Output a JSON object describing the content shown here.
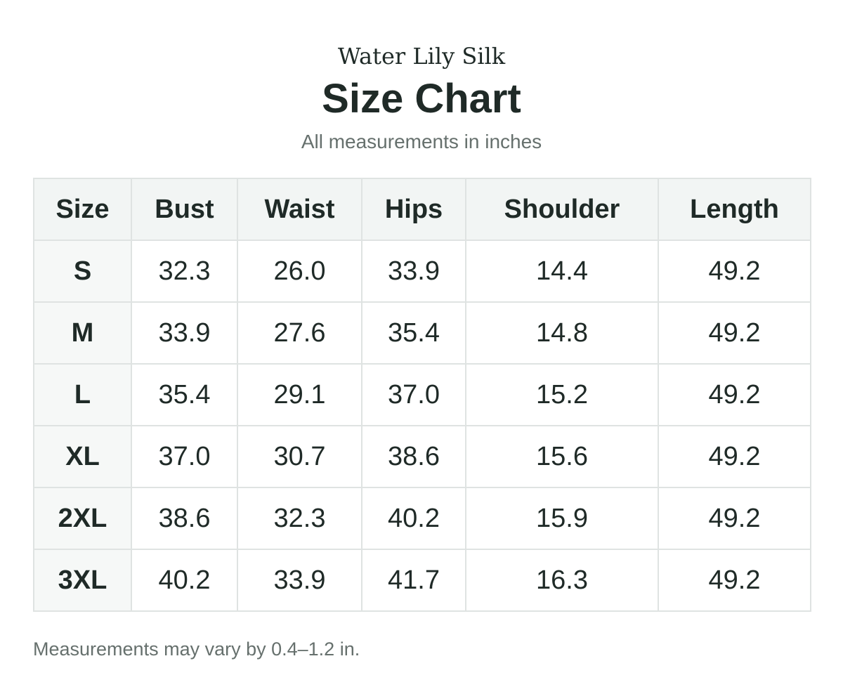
{
  "header": {
    "brand": "Water Lily Silk",
    "title": "Size Chart",
    "subtitle": "All measurements in inches"
  },
  "table": {
    "columns": [
      "Size",
      "Bust",
      "Waist",
      "Hips",
      "Shoulder",
      "Length"
    ],
    "rows": [
      {
        "size": "S",
        "bust": "32.3",
        "waist": "26.0",
        "hips": "33.9",
        "shoulder": "14.4",
        "length": "49.2"
      },
      {
        "size": "M",
        "bust": "33.9",
        "waist": "27.6",
        "hips": "35.4",
        "shoulder": "14.8",
        "length": "49.2"
      },
      {
        "size": "L",
        "bust": "35.4",
        "waist": "29.1",
        "hips": "37.0",
        "shoulder": "15.2",
        "length": "49.2"
      },
      {
        "size": "XL",
        "bust": "37.0",
        "waist": "30.7",
        "hips": "38.6",
        "shoulder": "15.6",
        "length": "49.2"
      },
      {
        "size": "2XL",
        "bust": "38.6",
        "waist": "32.3",
        "hips": "40.2",
        "shoulder": "15.9",
        "length": "49.2"
      },
      {
        "size": "3XL",
        "bust": "40.2",
        "waist": "33.9",
        "hips": "41.7",
        "shoulder": "16.3",
        "length": "49.2"
      }
    ]
  },
  "footer": {
    "note": "Measurements may vary by 0.4–1.2 in."
  },
  "colors": {
    "text": "#1f2a27",
    "muted": "#66706d",
    "header_bg": "#f2f5f4",
    "border": "#dfe3e2"
  }
}
